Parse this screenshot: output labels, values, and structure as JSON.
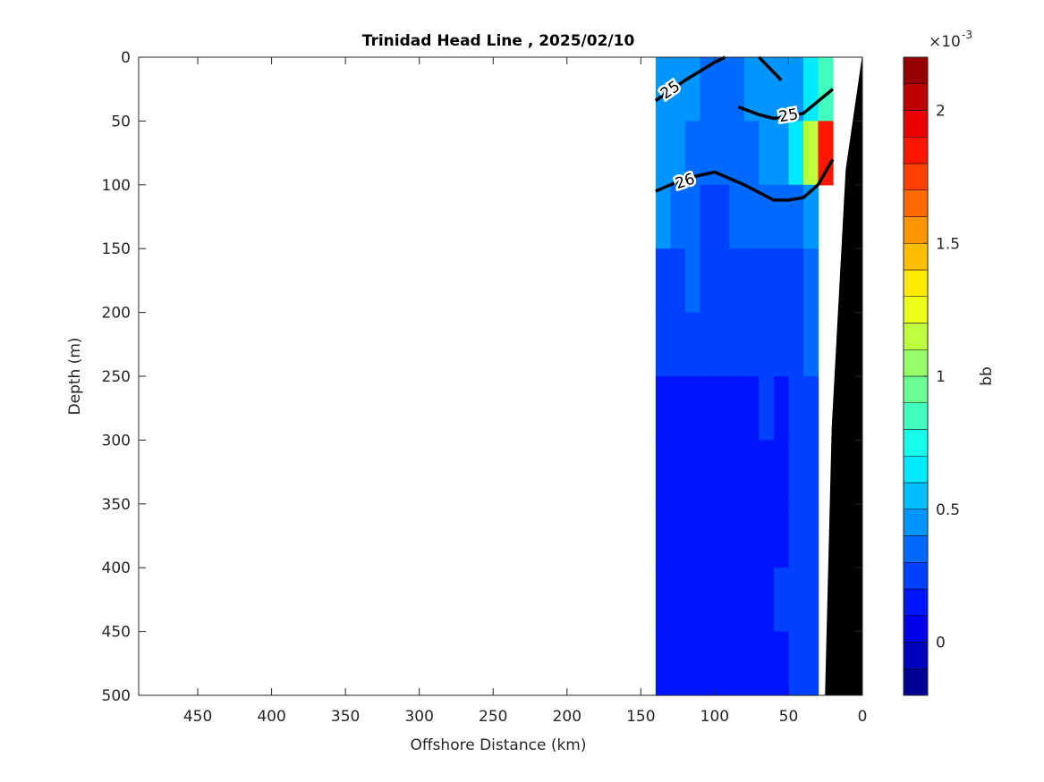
{
  "chart_data": {
    "type": "contourf",
    "title": "Trinidad Head Line , 2025/02/10",
    "xlabel": "Offshore Distance (km)",
    "ylabel": "Depth (m)",
    "xlim": [
      490,
      0
    ],
    "xticks": [
      450,
      400,
      350,
      300,
      250,
      200,
      150,
      100,
      50,
      0
    ],
    "ylim": [
      0,
      500
    ],
    "yticks": [
      0,
      50,
      100,
      150,
      200,
      250,
      300,
      350,
      400,
      450,
      500
    ],
    "colorbar": {
      "label": "bb",
      "multiplier": "×10",
      "exponent": "-3",
      "clim": [
        -0.2,
        2.2
      ],
      "ticks": [
        0,
        0.5,
        1,
        1.5,
        2
      ],
      "levels": 24,
      "colormap": "jet"
    },
    "field": {
      "x": [
        135,
        125,
        115,
        105,
        95,
        85,
        75,
        65,
        55,
        45,
        35,
        25
      ],
      "depth": [
        25,
        75,
        125,
        175,
        225,
        275,
        325,
        375,
        425,
        475
      ],
      "values": [
        [
          0.5,
          0.45,
          0.4,
          0.35,
          0.3,
          0.35,
          0.4,
          0.45,
          0.4,
          0.4,
          0.6,
          0.8
        ],
        [
          0.45,
          0.4,
          0.35,
          0.3,
          0.3,
          0.35,
          0.35,
          0.4,
          0.45,
          0.6,
          1.2,
          1.9
        ],
        [
          0.4,
          0.35,
          0.3,
          0.25,
          0.25,
          0.3,
          0.3,
          0.3,
          0.3,
          0.35,
          0.5,
          null
        ],
        [
          0.2,
          0.25,
          0.3,
          0.25,
          0.2,
          0.25,
          0.2,
          0.2,
          0.25,
          0.25,
          0.3,
          null
        ],
        [
          0.25,
          0.25,
          0.2,
          0.2,
          0.25,
          0.2,
          0.25,
          0.2,
          0.2,
          0.25,
          0.3,
          null
        ],
        [
          0.15,
          0.15,
          0.15,
          0.15,
          0.15,
          0.15,
          0.15,
          0.2,
          0.15,
          0.2,
          0.25,
          null
        ],
        [
          0.15,
          0.15,
          0.15,
          0.15,
          0.15,
          0.15,
          0.15,
          0.15,
          0.15,
          0.2,
          0.25,
          null
        ],
        [
          0.15,
          0.15,
          0.15,
          0.15,
          0.15,
          0.15,
          0.15,
          0.15,
          0.15,
          0.2,
          0.25,
          null
        ],
        [
          0.15,
          0.15,
          0.15,
          0.15,
          0.15,
          0.15,
          0.15,
          0.15,
          0.2,
          0.2,
          0.25,
          null
        ],
        [
          0.15,
          0.15,
          0.15,
          0.15,
          0.15,
          0.15,
          0.15,
          0.15,
          0.15,
          0.2,
          0.25,
          null
        ]
      ]
    },
    "contours": [
      {
        "level": 25,
        "x": [
          140,
          120,
          100,
          93,
          null,
          70,
          55,
          null,
          84,
          70,
          60,
          40,
          20
        ],
        "y": [
          34,
          18,
          4,
          0,
          null,
          0,
          18,
          null,
          39,
          45,
          48,
          44,
          25
        ]
      },
      {
        "level": 26,
        "x": [
          140,
          120,
          100,
          80,
          60,
          50,
          40,
          30,
          20
        ],
        "y": [
          105,
          95,
          90,
          100,
          112,
          112,
          110,
          100,
          80
        ]
      }
    ],
    "bottom": {
      "color": "#000000",
      "x": [
        0,
        11,
        20.5,
        25
      ],
      "depth": [
        0,
        88,
        291,
        500
      ]
    }
  }
}
